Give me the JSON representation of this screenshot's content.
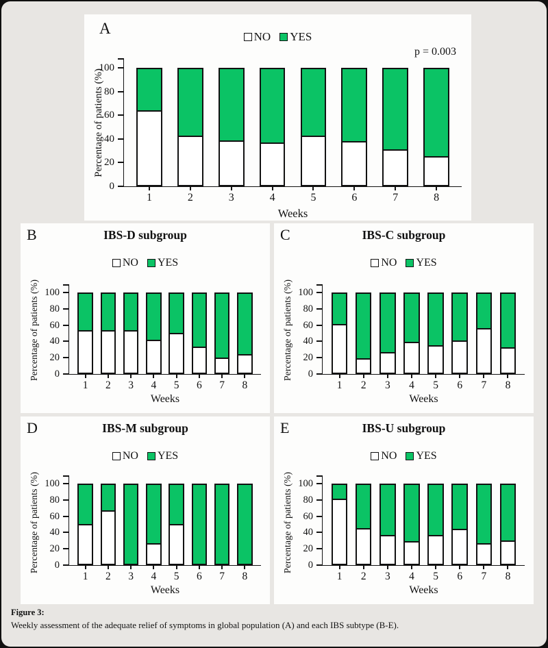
{
  "colors": {
    "yes": "#0bc365",
    "no": "#ffffff",
    "ink": "#111111",
    "background": "#e8e6e3",
    "panel": "#fdfdfc"
  },
  "legend": {
    "no": "NO",
    "yes": "YES"
  },
  "caption": {
    "label": "Figure 3:",
    "text": "Weekly assessment of the adequate relief of symptoms in global population (A) and each IBS subtype (B-E)."
  },
  "chart_data": [
    {
      "panel": "A",
      "type": "bar",
      "stacked": true,
      "title": null,
      "p_value": "p = 0.003",
      "xlabel": "Weeks",
      "ylabel": "Percentage of patients (%)",
      "categories": [
        "1",
        "2",
        "3",
        "4",
        "5",
        "6",
        "7",
        "8"
      ],
      "yticks": [
        0,
        20,
        40,
        60,
        80,
        100
      ],
      "ylim": [
        0,
        100
      ],
      "legend_position": "top",
      "grid": false,
      "series": [
        {
          "name": "NO",
          "values": [
            64,
            42,
            38,
            36,
            42,
            37,
            30,
            24
          ]
        },
        {
          "name": "YES",
          "values": [
            36,
            58,
            62,
            64,
            58,
            63,
            70,
            76
          ]
        }
      ]
    },
    {
      "panel": "B",
      "type": "bar",
      "stacked": true,
      "title": "IBS-D subgroup",
      "p_value": null,
      "xlabel": "Weeks",
      "ylabel": "Percentage of patients (%)",
      "categories": [
        "1",
        "2",
        "3",
        "4",
        "5",
        "6",
        "7",
        "8"
      ],
      "yticks": [
        0,
        20,
        40,
        60,
        80,
        100
      ],
      "ylim": [
        0,
        100
      ],
      "legend_position": "top",
      "grid": false,
      "series": [
        {
          "name": "NO",
          "values": [
            53,
            53,
            53,
            41,
            50,
            32,
            18,
            22
          ]
        },
        {
          "name": "YES",
          "values": [
            47,
            47,
            47,
            59,
            50,
            68,
            82,
            78
          ]
        }
      ]
    },
    {
      "panel": "C",
      "type": "bar",
      "stacked": true,
      "title": "IBS-C subgroup",
      "p_value": null,
      "xlabel": "Weeks",
      "ylabel": "Percentage of patients (%)",
      "categories": [
        "1",
        "2",
        "3",
        "4",
        "5",
        "6",
        "7",
        "8"
      ],
      "yticks": [
        0,
        20,
        40,
        60,
        80,
        100
      ],
      "ylim": [
        0,
        100
      ],
      "legend_position": "top",
      "grid": false,
      "series": [
        {
          "name": "NO",
          "values": [
            61,
            17,
            25,
            38,
            34,
            40,
            56,
            31
          ]
        },
        {
          "name": "YES",
          "values": [
            39,
            83,
            75,
            62,
            66,
            60,
            44,
            69
          ]
        }
      ]
    },
    {
      "panel": "D",
      "type": "bar",
      "stacked": true,
      "title": "IBS-M subgroup",
      "p_value": null,
      "xlabel": "Weeks",
      "ylabel": "Percentage of patients (%)",
      "categories": [
        "1",
        "2",
        "3",
        "4",
        "5",
        "6",
        "7",
        "8"
      ],
      "yticks": [
        0,
        20,
        40,
        60,
        80,
        100
      ],
      "ylim": [
        0,
        100
      ],
      "legend_position": "top",
      "grid": false,
      "series": [
        {
          "name": "NO",
          "values": [
            50,
            67,
            0,
            25,
            50,
            0,
            0,
            0
          ]
        },
        {
          "name": "YES",
          "values": [
            50,
            33,
            100,
            75,
            50,
            100,
            100,
            100
          ]
        }
      ]
    },
    {
      "panel": "E",
      "type": "bar",
      "stacked": true,
      "title": "IBS-U subgroup",
      "p_value": null,
      "xlabel": "Weeks",
      "ylabel": "Percentage of patients (%)",
      "categories": [
        "1",
        "2",
        "3",
        "4",
        "5",
        "6",
        "7",
        "8"
      ],
      "yticks": [
        0,
        20,
        40,
        60,
        80,
        100
      ],
      "ylim": [
        0,
        100
      ],
      "legend_position": "top",
      "grid": false,
      "series": [
        {
          "name": "NO",
          "values": [
            82,
            44,
            35,
            27,
            35,
            43,
            25,
            28
          ]
        },
        {
          "name": "YES",
          "values": [
            18,
            56,
            65,
            73,
            65,
            57,
            75,
            72
          ]
        }
      ]
    }
  ]
}
